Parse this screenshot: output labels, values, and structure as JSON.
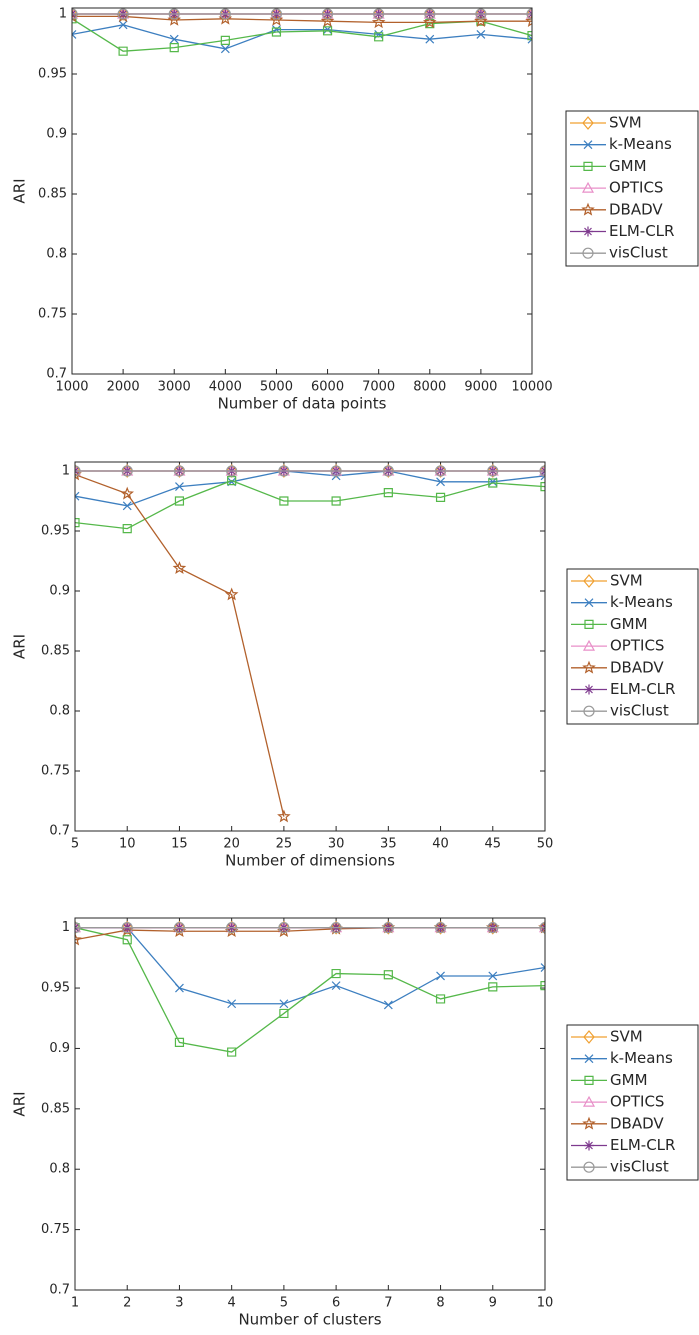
{
  "chart_data": [
    {
      "type": "line",
      "xlabel": "Number of data points",
      "ylabel": "ARI",
      "x": [
        1000,
        2000,
        3000,
        4000,
        5000,
        6000,
        7000,
        8000,
        9000,
        10000
      ],
      "xlim": [
        1000,
        10000
      ],
      "xticks": [
        1000,
        2000,
        3000,
        4000,
        5000,
        6000,
        7000,
        8000,
        9000,
        10000
      ],
      "ylim": [
        0.7,
        1.005
      ],
      "yticks": [
        0.7,
        0.75,
        0.8,
        0.85,
        0.9,
        0.95,
        1
      ],
      "legend": "outside right",
      "series": [
        {
          "name": "SVM",
          "color": "#f0a030",
          "marker": "diamond",
          "values": [
            1,
            1,
            1,
            1,
            1,
            1,
            1,
            1,
            1,
            1
          ]
        },
        {
          "name": "k-Means",
          "color": "#3d7fc0",
          "marker": "x",
          "values": [
            0.983,
            0.991,
            0.979,
            0.971,
            0.987,
            0.987,
            0.983,
            0.979,
            0.983,
            0.979
          ]
        },
        {
          "name": "GMM",
          "color": "#55b84a",
          "marker": "square",
          "values": [
            0.996,
            0.969,
            0.972,
            0.978,
            0.985,
            0.986,
            0.981,
            0.992,
            0.994,
            0.982
          ]
        },
        {
          "name": "OPTICS",
          "color": "#e88fc8",
          "marker": "triangle",
          "values": [
            1,
            1,
            1,
            1,
            1,
            1,
            1,
            1,
            1,
            1
          ]
        },
        {
          "name": "DBADV",
          "color": "#b2612c",
          "marker": "star",
          "values": [
            0.998,
            0.998,
            0.995,
            0.996,
            0.995,
            0.994,
            0.993,
            0.993,
            0.994,
            0.994
          ]
        },
        {
          "name": "ELM-CLR",
          "color": "#7e3a8e",
          "marker": "asterisk",
          "values": [
            1,
            1,
            1,
            1,
            1,
            1,
            1,
            1,
            1,
            1
          ]
        },
        {
          "name": "visClust",
          "color": "#9a9a9a",
          "marker": "circle",
          "values": [
            1,
            1,
            1,
            1,
            1,
            1,
            1,
            1,
            1,
            1
          ]
        }
      ]
    },
    {
      "type": "line",
      "xlabel": "Number of dimensions",
      "ylabel": "ARI",
      "x": [
        5,
        10,
        15,
        20,
        25,
        30,
        35,
        40,
        45,
        50
      ],
      "xlim": [
        5,
        50
      ],
      "xticks": [
        5,
        10,
        15,
        20,
        25,
        30,
        35,
        40,
        45,
        50
      ],
      "ylim": [
        0.7,
        1.0075
      ],
      "yticks": [
        0.7,
        0.75,
        0.8,
        0.85,
        0.9,
        0.95,
        1
      ],
      "legend": "outside right",
      "series": [
        {
          "name": "SVM",
          "color": "#f0a030",
          "marker": "diamond",
          "values": [
            1,
            1,
            1,
            1,
            1,
            1,
            1,
            1,
            1,
            1
          ]
        },
        {
          "name": "k-Means",
          "color": "#3d7fc0",
          "marker": "x",
          "values": [
            0.979,
            0.971,
            0.987,
            0.991,
            1,
            0.996,
            1,
            0.991,
            0.991,
            0.996
          ]
        },
        {
          "name": "GMM",
          "color": "#55b84a",
          "marker": "square",
          "values": [
            0.957,
            0.952,
            0.975,
            0.992,
            0.975,
            0.975,
            0.982,
            0.978,
            0.99,
            0.987
          ]
        },
        {
          "name": "OPTICS",
          "color": "#e88fc8",
          "marker": "triangle",
          "values": [
            1,
            1,
            1,
            1,
            1,
            1,
            1,
            1,
            1,
            1
          ]
        },
        {
          "name": "DBADV",
          "color": "#b2612c",
          "marker": "star",
          "values": [
            0.997,
            0.981,
            0.919,
            0.897,
            0.712,
            null,
            null,
            null,
            null,
            null
          ]
        },
        {
          "name": "ELM-CLR",
          "color": "#7e3a8e",
          "marker": "asterisk",
          "values": [
            1,
            1,
            1,
            1,
            1,
            1,
            1,
            1,
            1,
            1
          ]
        },
        {
          "name": "visClust",
          "color": "#9a9a9a",
          "marker": "circle",
          "values": [
            1,
            1,
            1,
            1,
            1,
            1,
            1,
            1,
            1,
            1
          ]
        }
      ]
    },
    {
      "type": "line",
      "xlabel": "Number of clusters",
      "ylabel": "ARI",
      "x": [
        1,
        2,
        3,
        4,
        5,
        6,
        7,
        8,
        9,
        10
      ],
      "xlim": [
        1,
        10
      ],
      "xticks": [
        1,
        2,
        3,
        4,
        5,
        6,
        7,
        8,
        9,
        10
      ],
      "ylim": [
        0.7,
        1.008
      ],
      "yticks": [
        0.7,
        0.75,
        0.8,
        0.85,
        0.9,
        0.95,
        1
      ],
      "legend": "outside right",
      "series": [
        {
          "name": "SVM",
          "color": "#f0a030",
          "marker": "diamond",
          "values": [
            1,
            1,
            1,
            1,
            1,
            1,
            1,
            1,
            1,
            1
          ]
        },
        {
          "name": "k-Means",
          "color": "#3d7fc0",
          "marker": "x",
          "values": [
            1,
            1,
            0.95,
            0.937,
            0.937,
            0.952,
            0.936,
            0.96,
            0.96,
            0.967
          ]
        },
        {
          "name": "GMM",
          "color": "#55b84a",
          "marker": "square",
          "values": [
            1,
            0.99,
            0.905,
            0.897,
            0.929,
            0.962,
            0.961,
            0.941,
            0.951,
            0.952
          ]
        },
        {
          "name": "OPTICS",
          "color": "#e88fc8",
          "marker": "triangle",
          "values": [
            1,
            1,
            1,
            1,
            1,
            1,
            1,
            1,
            1,
            1
          ]
        },
        {
          "name": "DBADV",
          "color": "#b2612c",
          "marker": "star",
          "values": [
            0.99,
            0.998,
            0.997,
            0.997,
            0.997,
            0.999,
            1,
            1,
            1,
            1
          ]
        },
        {
          "name": "ELM-CLR",
          "color": "#7e3a8e",
          "marker": "asterisk",
          "values": [
            1,
            1,
            1,
            1,
            1,
            1,
            1,
            1,
            1,
            1
          ]
        },
        {
          "name": "visClust",
          "color": "#9a9a9a",
          "marker": "circle",
          "values": [
            1,
            1,
            1,
            1,
            1,
            1,
            1,
            1,
            1,
            1
          ]
        }
      ]
    }
  ]
}
